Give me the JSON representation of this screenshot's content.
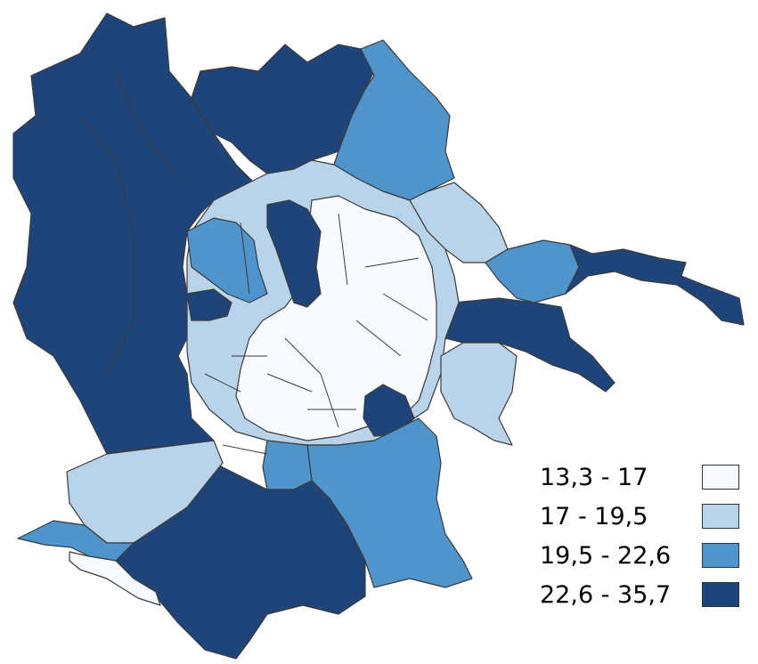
{
  "map": {
    "palette": {
      "class1": "#f7fbff",
      "class2": "#b8d3ea",
      "class3": "#4f94cb",
      "class4": "#1f4479",
      "border": "#3a3a3a"
    }
  },
  "legend": {
    "items": [
      {
        "label": "13,3 - 17",
        "color": "#f7fbff"
      },
      {
        "label": "17 - 19,5",
        "color": "#b8d3ea"
      },
      {
        "label": "19,5 - 22,6",
        "color": "#4f94cb"
      },
      {
        "label": "22,6 - 35,7",
        "color": "#1f4479"
      }
    ]
  }
}
